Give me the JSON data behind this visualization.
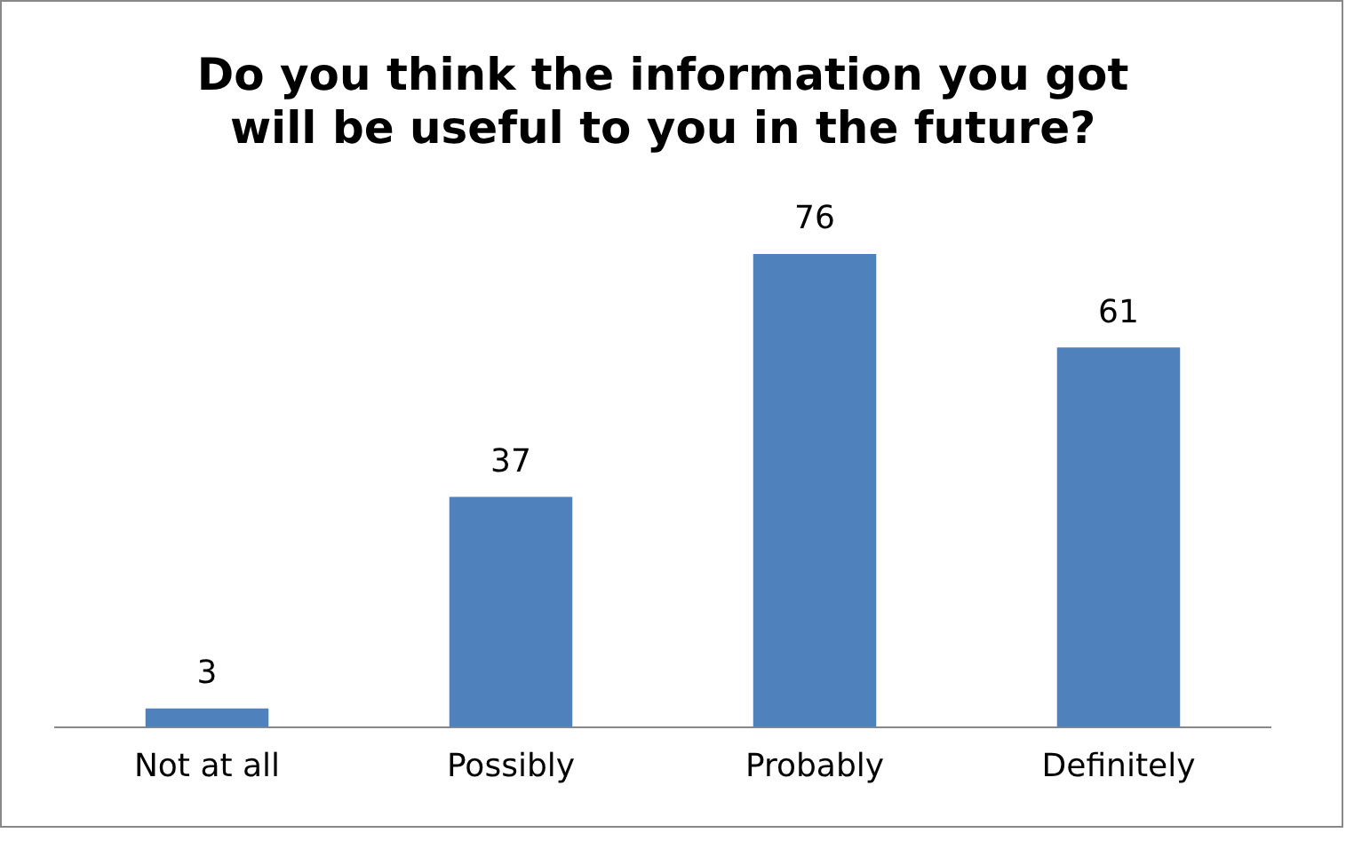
{
  "chart_data": {
    "type": "bar",
    "title": "Do you think the information you got will be useful to you in the future?",
    "categories": [
      "Not at all",
      "Possibly",
      "Probably",
      "Definitely"
    ],
    "values": [
      3,
      37,
      76,
      61
    ],
    "color": "#4f81bd",
    "data_labels": true,
    "grid": false,
    "legend": false
  }
}
